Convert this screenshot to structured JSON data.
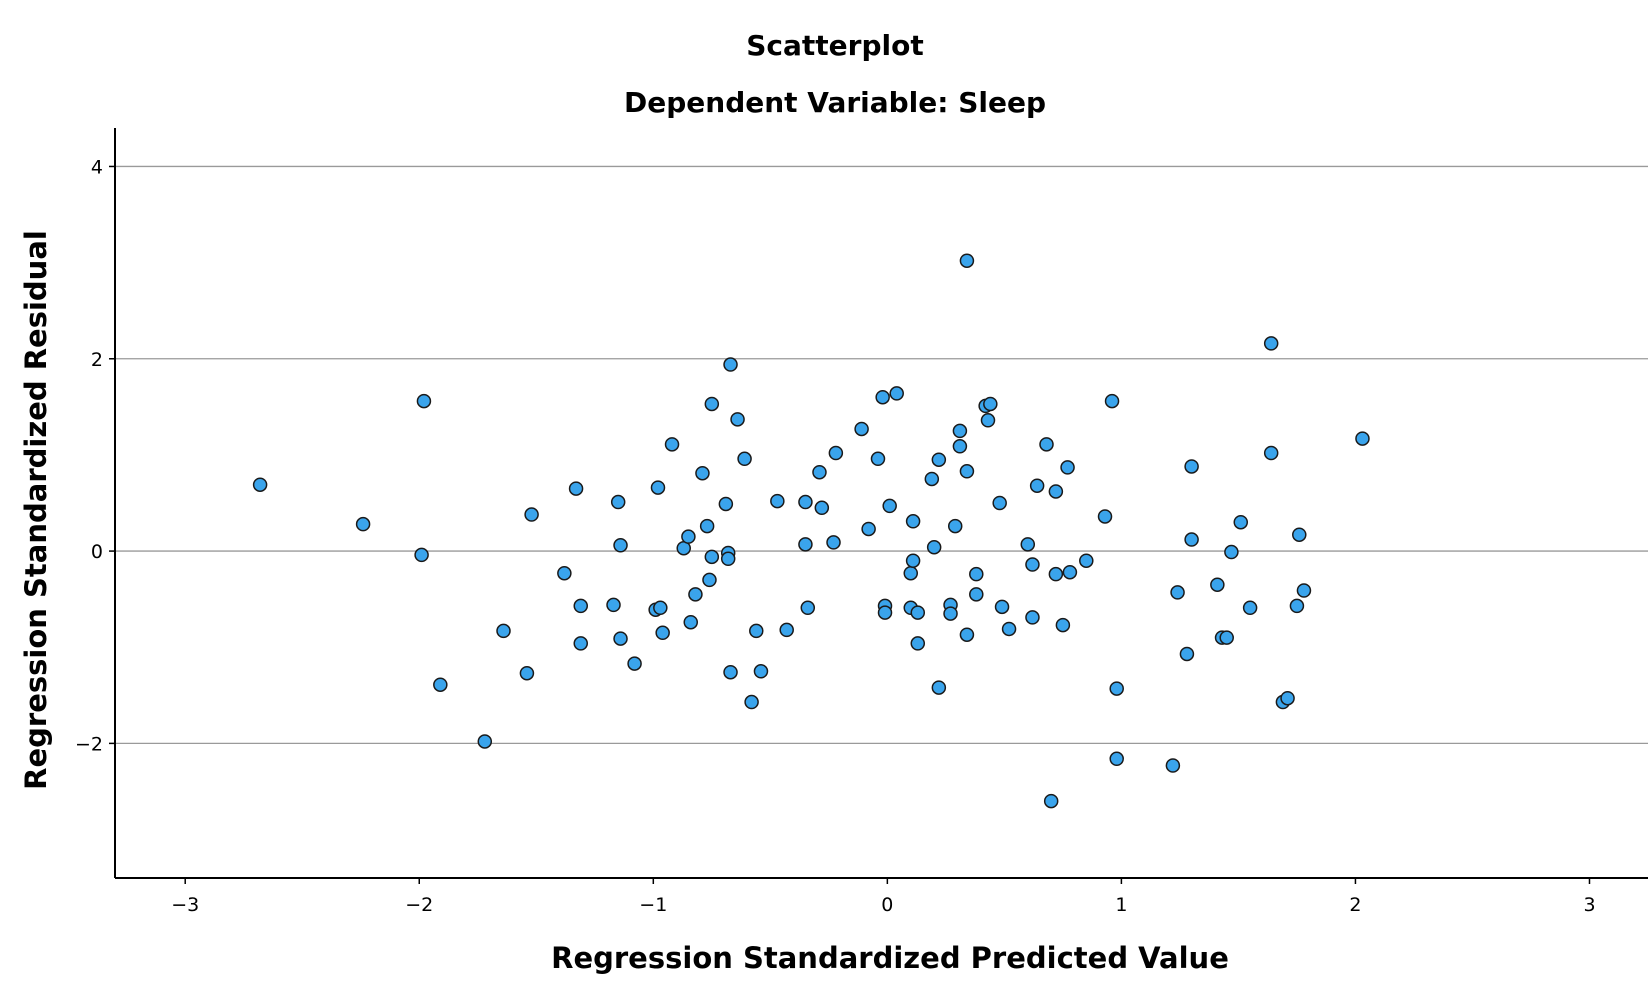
{
  "chart_data": {
    "type": "scatter",
    "title": "Scatterplot",
    "subtitle": "Dependent Variable: Sleep",
    "xlabel": "Regression Standardized Predicted Value",
    "ylabel": "Regression Standardized Residual",
    "xlim": [
      -3.3,
      3.25
    ],
    "ylim": [
      -3.4,
      4.4
    ],
    "x_ticks": [
      {
        "value": -3,
        "label": "−3"
      },
      {
        "value": -2,
        "label": "−2"
      },
      {
        "value": -1,
        "label": "−1"
      },
      {
        "value": 0,
        "label": "0"
      },
      {
        "value": 1,
        "label": "1"
      },
      {
        "value": 2,
        "label": "2"
      },
      {
        "value": 3,
        "label": "3"
      }
    ],
    "y_ticks": [
      {
        "value": -2,
        "label": "−2"
      },
      {
        "value": 0,
        "label": "0"
      },
      {
        "value": 2,
        "label": "2"
      },
      {
        "value": 4,
        "label": "4"
      }
    ],
    "grid": "horizontal",
    "colors": {
      "marker_fill": "#3aa4ec",
      "marker_edge": "#1a1a1a",
      "gridline": "#9a9a9a"
    },
    "points": [
      [
        -2.68,
        0.69
      ],
      [
        -2.24,
        0.28
      ],
      [
        -1.98,
        1.56
      ],
      [
        -1.99,
        -0.04
      ],
      [
        -1.91,
        -1.39
      ],
      [
        -1.72,
        -1.98
      ],
      [
        -1.64,
        -0.83
      ],
      [
        -1.54,
        -1.27
      ],
      [
        -1.52,
        0.38
      ],
      [
        -1.38,
        -0.23
      ],
      [
        -1.33,
        0.65
      ],
      [
        -1.31,
        -0.57
      ],
      [
        -1.31,
        -0.96
      ],
      [
        -1.17,
        -0.56
      ],
      [
        -1.15,
        0.51
      ],
      [
        -1.14,
        0.06
      ],
      [
        -1.14,
        -0.91
      ],
      [
        -1.08,
        -1.17
      ],
      [
        -0.99,
        -0.61
      ],
      [
        -0.98,
        0.66
      ],
      [
        -0.97,
        -0.59
      ],
      [
        -0.96,
        -0.85
      ],
      [
        -0.92,
        1.11
      ],
      [
        -0.87,
        0.03
      ],
      [
        -0.85,
        0.15
      ],
      [
        -0.84,
        -0.74
      ],
      [
        -0.82,
        -0.45
      ],
      [
        -0.79,
        0.81
      ],
      [
        -0.77,
        0.26
      ],
      [
        -0.76,
        -0.3
      ],
      [
        -0.75,
        1.53
      ],
      [
        -0.75,
        -0.06
      ],
      [
        -0.69,
        0.49
      ],
      [
        -0.68,
        -0.02
      ],
      [
        -0.68,
        -0.08
      ],
      [
        -0.67,
        1.94
      ],
      [
        -0.67,
        -1.26
      ],
      [
        -0.64,
        1.37
      ],
      [
        -0.61,
        0.96
      ],
      [
        -0.58,
        -1.57
      ],
      [
        -0.56,
        -0.83
      ],
      [
        -0.54,
        -1.25
      ],
      [
        -0.47,
        0.52
      ],
      [
        -0.43,
        -0.82
      ],
      [
        -0.35,
        0.07
      ],
      [
        -0.35,
        0.51
      ],
      [
        -0.34,
        -0.59
      ],
      [
        -0.29,
        0.82
      ],
      [
        -0.28,
        0.45
      ],
      [
        -0.23,
        0.09
      ],
      [
        -0.22,
        1.02
      ],
      [
        -0.11,
        1.27
      ],
      [
        -0.08,
        0.23
      ],
      [
        -0.04,
        0.96
      ],
      [
        -0.02,
        1.6
      ],
      [
        -0.01,
        -0.57
      ],
      [
        -0.01,
        -0.64
      ],
      [
        0.01,
        0.47
      ],
      [
        0.04,
        1.64
      ],
      [
        0.1,
        -0.23
      ],
      [
        0.1,
        -0.59
      ],
      [
        0.11,
        -0.1
      ],
      [
        0.11,
        0.31
      ],
      [
        0.13,
        -0.64
      ],
      [
        0.13,
        -0.96
      ],
      [
        0.19,
        0.75
      ],
      [
        0.2,
        0.04
      ],
      [
        0.22,
        0.95
      ],
      [
        0.22,
        -1.42
      ],
      [
        0.27,
        -0.56
      ],
      [
        0.27,
        -0.65
      ],
      [
        0.29,
        0.26
      ],
      [
        0.31,
        1.09
      ],
      [
        0.31,
        1.25
      ],
      [
        0.34,
        3.02
      ],
      [
        0.34,
        0.83
      ],
      [
        0.34,
        -0.87
      ],
      [
        0.38,
        -0.24
      ],
      [
        0.38,
        -0.45
      ],
      [
        0.42,
        1.51
      ],
      [
        0.43,
        1.36
      ],
      [
        0.44,
        1.53
      ],
      [
        0.48,
        0.5
      ],
      [
        0.49,
        -0.58
      ],
      [
        0.52,
        -0.81
      ],
      [
        0.6,
        0.07
      ],
      [
        0.62,
        -0.14
      ],
      [
        0.62,
        -0.69
      ],
      [
        0.64,
        0.68
      ],
      [
        0.68,
        1.11
      ],
      [
        0.7,
        -2.6
      ],
      [
        0.72,
        -0.24
      ],
      [
        0.72,
        0.62
      ],
      [
        0.75,
        -0.77
      ],
      [
        0.77,
        0.87
      ],
      [
        0.78,
        -0.22
      ],
      [
        0.85,
        -0.1
      ],
      [
        0.93,
        0.36
      ],
      [
        0.96,
        1.56
      ],
      [
        0.98,
        -1.43
      ],
      [
        0.98,
        -2.16
      ],
      [
        1.22,
        -2.23
      ],
      [
        1.24,
        -0.43
      ],
      [
        1.28,
        -1.07
      ],
      [
        1.3,
        0.88
      ],
      [
        1.3,
        0.12
      ],
      [
        1.41,
        -0.35
      ],
      [
        1.43,
        -0.9
      ],
      [
        1.45,
        -0.9
      ],
      [
        1.47,
        -0.01
      ],
      [
        1.51,
        0.3
      ],
      [
        1.55,
        -0.59
      ],
      [
        1.64,
        2.16
      ],
      [
        1.64,
        1.02
      ],
      [
        1.69,
        -1.57
      ],
      [
        1.71,
        -1.53
      ],
      [
        1.75,
        -0.57
      ],
      [
        1.76,
        0.17
      ],
      [
        1.78,
        -0.41
      ],
      [
        2.03,
        1.17
      ]
    ]
  }
}
